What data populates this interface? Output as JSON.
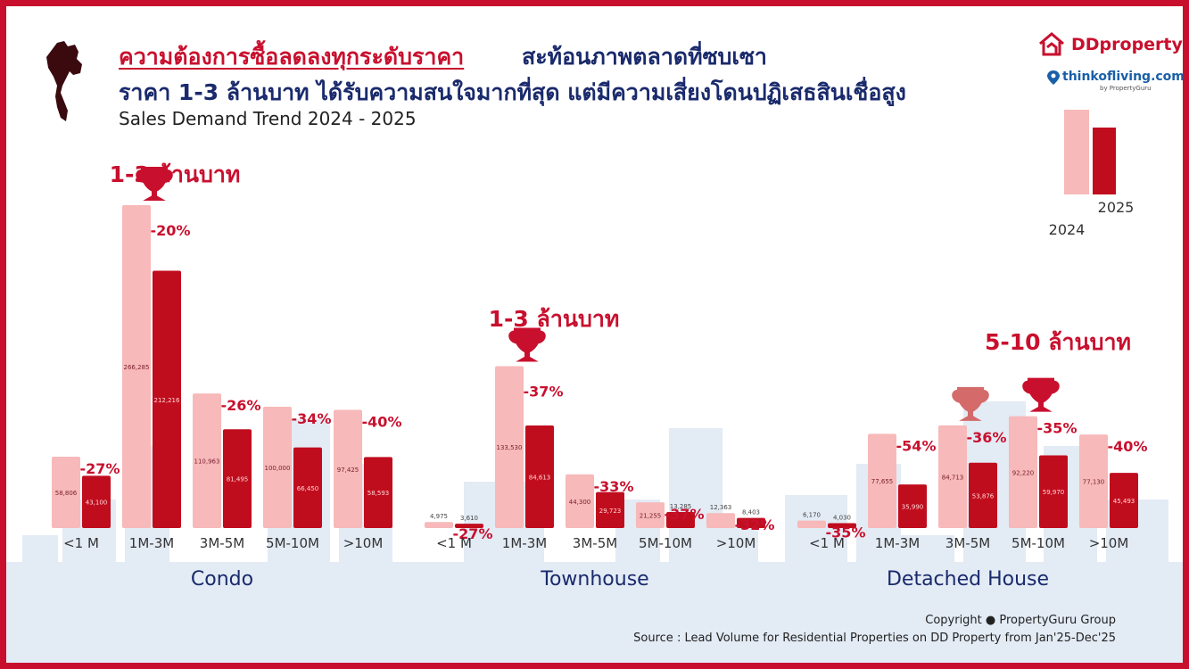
{
  "title": {
    "line1_highlight": "ความต้องการซื้อลดลงทุกระดับราคา",
    "line1_rest": " สะท้อนภาพตลาดที่ซบเซา",
    "line2": "ราคา 1-3 ล้านบาท ได้รับความสนใจมากที่สุด แต่มีความเสี่ยงโดนปฏิเสธสินเชื่อสูง",
    "subtitle": "Sales Demand Trend 2024 - 2025"
  },
  "brands": {
    "ddproperty": "DDproperty",
    "thinkofliving": "thinkofliving.com",
    "thinkofliving_sub": "by PropertyGuru"
  },
  "colors": {
    "y2024": "#f7b9b9",
    "y2025": "#c00d1e",
    "accent": "#c8102e",
    "title_blue": "#1a2a6c",
    "skyline": "#e3ebf5"
  },
  "footer": {
    "copyright": "Copyright  ● PropertyGuru Group",
    "source": "Source : Lead Volume for Residential Properties on DD Property from  Jan'25-Dec'25"
  },
  "chart_data": {
    "type": "bar",
    "legend": {
      "labels": [
        "2024",
        "2025"
      ],
      "position": "top-right"
    },
    "groups": [
      {
        "name": "Condo",
        "highlight_label": "1-3 ล้านบาท",
        "trophy_categories": [
          "1M-3M"
        ],
        "categories": [
          "<1 M",
          "1M-3M",
          "3M-5M",
          "5M-10M",
          ">10M"
        ],
        "series": [
          {
            "name": "2024",
            "values": [
              58806,
              266285,
              110963,
              100000,
              97425
            ]
          },
          {
            "name": "2025",
            "values": [
              43100,
              212216,
              81495,
              66450,
              58593
            ]
          }
        ],
        "value_labels_2024": [
          "58,806",
          "266,285",
          "110,963",
          "100,000",
          "97,425"
        ],
        "value_labels_2025": [
          "43,100",
          "212,216",
          "81,495",
          "66,450",
          "58,593"
        ],
        "changes": [
          "-27%",
          "-20%",
          "-26%",
          "-34%",
          "-40%"
        ]
      },
      {
        "name": "Townhouse",
        "highlight_label": "1-3 ล้านบาท",
        "trophy_categories": [
          "1M-3M"
        ],
        "categories": [
          "<1 M",
          "1M-3M",
          "3M-5M",
          "5M-10M",
          ">10M"
        ],
        "series": [
          {
            "name": "2024",
            "values": [
              4975,
              133530,
              44300,
              21255,
              12363
            ]
          },
          {
            "name": "2025",
            "values": [
              3610,
              84613,
              29723,
              13285,
              8403
            ]
          }
        ],
        "value_labels_2024": [
          "4,975",
          "133,530",
          "44,300",
          "21,255",
          "12,363"
        ],
        "value_labels_2025": [
          "3,610",
          "84,613",
          "29,723",
          "13,285",
          "8,403"
        ],
        "changes": [
          "-27%",
          "-37%",
          "-33%",
          "-37%",
          "-32%"
        ]
      },
      {
        "name": "Detached House",
        "highlight_label": "5-10 ล้านบาท",
        "trophy_categories": [
          "3M-5M",
          "5M-10M"
        ],
        "categories": [
          "<1 M",
          "1M-3M",
          "3M-5M",
          "5M-10M",
          ">10M"
        ],
        "series": [
          {
            "name": "2024",
            "values": [
              6170,
              77655,
              84713,
              92220,
              77130
            ]
          },
          {
            "name": "2025",
            "values": [
              4030,
              35990,
              53876,
              59970,
              45493
            ]
          }
        ],
        "value_labels_2024": [
          "6,170",
          "77,655",
          "84,713",
          "92,220",
          "77,130"
        ],
        "value_labels_2025": [
          "4,030",
          "35,990",
          "53,876",
          "59,970",
          "45,493"
        ],
        "changes": [
          "-35%",
          "-54%",
          "-36%",
          "-35%",
          "-40%"
        ]
      }
    ]
  }
}
